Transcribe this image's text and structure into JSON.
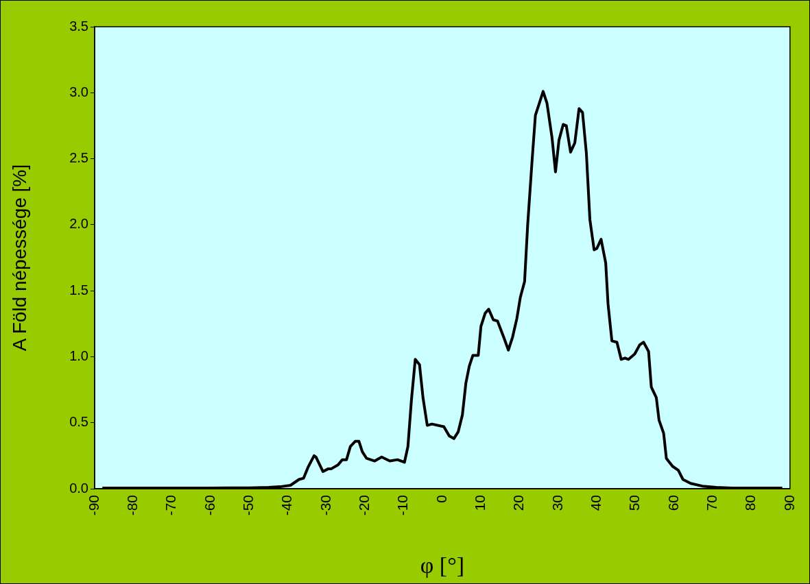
{
  "chart_data": {
    "type": "line",
    "xlabel": "φ [°]",
    "ylabel": "A Föld népessége [%]",
    "x": [
      -88,
      -80,
      -70,
      -60,
      -55,
      -50,
      -45,
      -42,
      -39.3,
      -37.1,
      -35.9,
      -34.8,
      -33.2,
      -32.7,
      -30.9,
      -29.6,
      -28.8,
      -27,
      -25.9,
      -24.8,
      -23.8,
      -22.5,
      -21.6,
      -20.7,
      -19.6,
      -17.5,
      -15.7,
      -13.6,
      -11.6,
      -9.8,
      -8.9,
      -8,
      -7,
      -5.9,
      -5,
      -3.9,
      -2.7,
      0.4,
      1.8,
      3,
      4.1,
      5.2,
      6.1,
      7,
      7.9,
      9.3,
      10,
      11.1,
      12,
      13.2,
      14.3,
      16,
      17.1,
      18.2,
      19.3,
      20.2,
      21.3,
      22.1,
      23.2,
      24.1,
      25,
      26.1,
      27.1,
      28.4,
      29.3,
      30.2,
      31.3,
      32.1,
      33.2,
      34.3,
      35.4,
      36.3,
      37.3,
      38.2,
      39.3,
      40,
      41.1,
      42.3,
      42.9,
      43.9,
      45.2,
      46.3,
      47.3,
      48.2,
      49.8,
      51.1,
      52.1,
      53.4,
      54.1,
      55.4,
      56.1,
      57.3,
      58,
      59.6,
      61.1,
      62.3,
      64.3,
      67.3,
      70.9,
      75,
      80,
      88
    ],
    "series": [
      {
        "color": "#000000",
        "values": [
          0.005,
          0.005,
          0.005,
          0.005,
          0.006,
          0.006,
          0.01,
          0.015,
          0.026,
          0.07,
          0.08,
          0.16,
          0.25,
          0.24,
          0.13,
          0.15,
          0.15,
          0.18,
          0.22,
          0.22,
          0.32,
          0.36,
          0.36,
          0.28,
          0.23,
          0.21,
          0.24,
          0.21,
          0.22,
          0.2,
          0.32,
          0.67,
          0.98,
          0.94,
          0.69,
          0.48,
          0.49,
          0.47,
          0.4,
          0.38,
          0.43,
          0.56,
          0.8,
          0.93,
          1.01,
          1.01,
          1.23,
          1.33,
          1.36,
          1.28,
          1.27,
          1.14,
          1.05,
          1.15,
          1.29,
          1.45,
          1.57,
          2.0,
          2.47,
          2.83,
          2.91,
          3.01,
          2.92,
          2.66,
          2.4,
          2.64,
          2.76,
          2.75,
          2.55,
          2.62,
          2.88,
          2.85,
          2.54,
          2.04,
          1.81,
          1.82,
          1.89,
          1.71,
          1.4,
          1.12,
          1.11,
          0.98,
          0.99,
          0.98,
          1.02,
          1.09,
          1.11,
          1.04,
          0.77,
          0.69,
          0.52,
          0.42,
          0.23,
          0.17,
          0.14,
          0.07,
          0.04,
          0.02,
          0.01,
          0.005,
          0.005,
          0.005
        ]
      }
    ],
    "xlim": [
      -90,
      90
    ],
    "xticks": [
      -90,
      -80,
      -70,
      -60,
      -50,
      -40,
      -30,
      -20,
      -10,
      0,
      10,
      20,
      30,
      40,
      50,
      60,
      70,
      80,
      90
    ],
    "ylim": [
      0,
      3.5
    ],
    "yticks": [
      {
        "value": 0,
        "label": "0.0"
      },
      {
        "value": 0.5,
        "label": "0.5"
      },
      {
        "value": 1,
        "label": "1.0"
      },
      {
        "value": 1.5,
        "label": "1.5"
      },
      {
        "value": 2,
        "label": "2.0"
      },
      {
        "value": 2.5,
        "label": "2.5"
      },
      {
        "value": 3,
        "label": "3.0"
      },
      {
        "value": 3.5,
        "label": "3.5"
      }
    ],
    "grid": false,
    "legend": false,
    "marker": "none",
    "line_style": "solid"
  }
}
